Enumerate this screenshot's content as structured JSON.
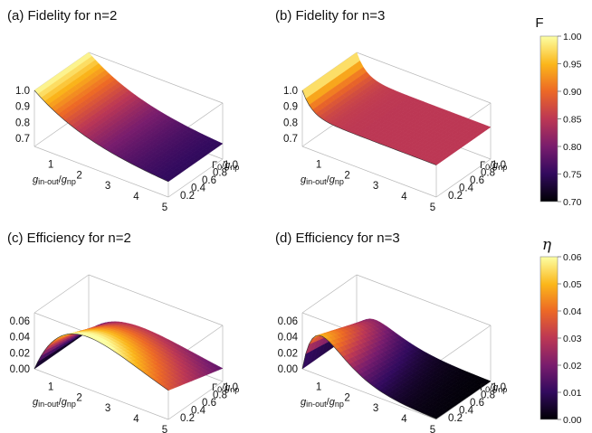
{
  "axis_labels": {
    "x_main": "g",
    "x_sub": "in-out",
    "x_slash": "/",
    "x_main2": "g",
    "x_sub2": "np",
    "y_main": "Γ",
    "y_sub": "0",
    "y_slash": "/",
    "y_main2": "g",
    "y_sub2": "np"
  },
  "colorbars": [
    {
      "label": "F",
      "ticks": [
        "1.00",
        "0.95",
        "0.90",
        "0.85",
        "0.80",
        "0.75",
        "0.70"
      ]
    },
    {
      "label": "η",
      "ticks": [
        "0.06",
        "0.05",
        "0.04",
        "0.03",
        "0.02",
        "0.01",
        "0.00"
      ]
    }
  ],
  "colors": {
    "cmap": [
      "#000004",
      "#320a5e",
      "#781c6d",
      "#bc3754",
      "#ed6925",
      "#fbb61a",
      "#fcffa4"
    ]
  },
  "chart_data": [
    {
      "type": "surface3d",
      "title": "(a) Fidelity for n=2",
      "x": {
        "label": "g_in-out/g_np",
        "range": [
          0.3,
          5
        ],
        "ticks": [
          "1",
          "2",
          "3",
          "4",
          "5"
        ]
      },
      "y": {
        "label": "Γ0/g_np",
        "range": [
          0.1,
          1.1
        ],
        "ticks": [
          "0.2",
          "0.4",
          "0.6",
          "0.8",
          "1.0"
        ]
      },
      "z": {
        "range": [
          0.65,
          1.0
        ],
        "ticks": [
          "0.7",
          "0.8",
          "0.9",
          "1.0"
        ]
      },
      "surface": {
        "model": "decay",
        "z_start": 1.0,
        "z_end": 0.72,
        "decay_rate": 0.5,
        "y_dependence": "none"
      },
      "color_range": [
        0.7,
        1.0
      ]
    },
    {
      "type": "surface3d",
      "title": "(b) Fidelity for n=3",
      "x": {
        "label": "g_in-out/g_np",
        "range": [
          0.3,
          5
        ],
        "ticks": [
          "1",
          "2",
          "3",
          "4",
          "5"
        ]
      },
      "y": {
        "label": "Γ0/g_np",
        "range": [
          0.1,
          1.1
        ],
        "ticks": [
          "0.2",
          "0.4",
          "0.6",
          "0.8",
          "1.0"
        ]
      },
      "z": {
        "range": [
          0.65,
          1.0
        ],
        "ticks": [
          "0.7",
          "0.8",
          "0.9",
          "1.0"
        ]
      },
      "surface": {
        "model": "fast_decay",
        "z_start": 1.0,
        "z_end": 0.85,
        "decay_rate": 3.0,
        "y_dependence": "none"
      },
      "color_range": [
        0.7,
        1.0
      ]
    },
    {
      "type": "surface3d",
      "title": "(c) Efficiency for n=2",
      "x": {
        "label": "g_in-out/g_np",
        "range": [
          0.3,
          5
        ],
        "ticks": [
          "1",
          "2",
          "3",
          "4",
          "5"
        ]
      },
      "y": {
        "label": "Γ0/g_np",
        "range": [
          0.1,
          1.1
        ],
        "ticks": [
          "0.2",
          "0.4",
          "0.6",
          "0.8",
          "1.0"
        ]
      },
      "z": {
        "range": [
          0.0,
          0.07
        ],
        "ticks": [
          "0.00",
          "0.02",
          "0.04",
          "0.06"
        ]
      },
      "surface": {
        "model": "peak",
        "z_max": 0.065,
        "peak_ratio": 2.0,
        "y_dependence": "decreasing"
      },
      "color_range": [
        0.0,
        0.06
      ]
    },
    {
      "type": "surface3d",
      "title": "(d) Efficiency for n=3",
      "x": {
        "label": "g_in-out/g_np",
        "range": [
          0.3,
          5
        ],
        "ticks": [
          "1",
          "2",
          "3",
          "4",
          "5"
        ]
      },
      "y": {
        "label": "Γ0/g_np",
        "range": [
          0.1,
          1.1
        ],
        "ticks": [
          "0.2",
          "0.4",
          "0.6",
          "0.8",
          "1.0"
        ]
      },
      "z": {
        "range": [
          0.0,
          0.07
        ],
        "ticks": [
          "0.00",
          "0.02",
          "0.04",
          "0.06"
        ]
      },
      "surface": {
        "model": "peak",
        "z_max": 0.05,
        "peak_ratio": 0.7,
        "y_dependence": "decreasing"
      },
      "color_range": [
        0.0,
        0.06
      ]
    }
  ]
}
